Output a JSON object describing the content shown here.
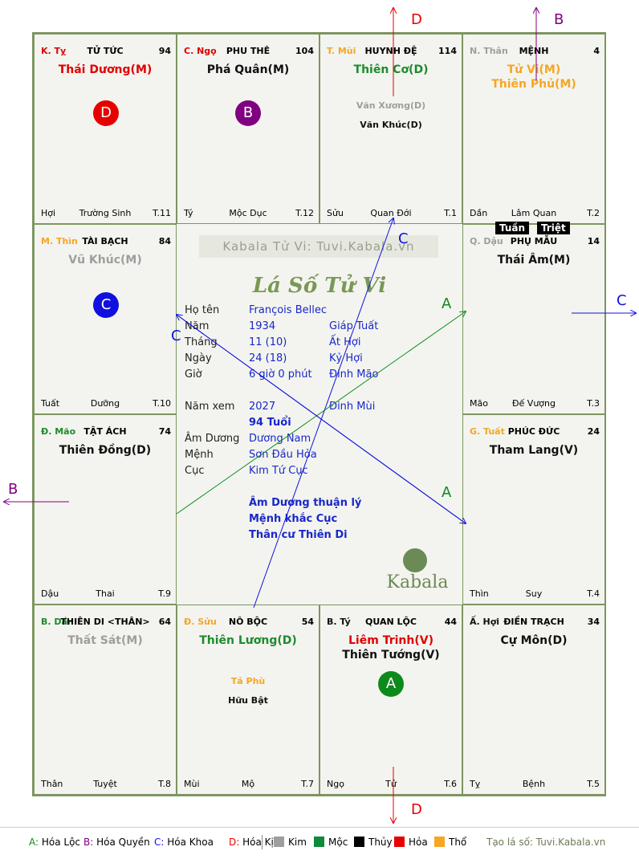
{
  "cells": [
    {
      "id": "ty",
      "can": "K. Tỵ",
      "can_color": "red",
      "palace": "TỬ TỨC",
      "num": "94",
      "main": [
        {
          "t": "Thái Dương(M)",
          "c": "red"
        }
      ],
      "minor": [],
      "left": "Hợi",
      "mid": "Trường Sinh",
      "right": "T.11"
    },
    {
      "id": "ngo",
      "can": "C. Ngọ",
      "can_color": "red",
      "palace": "PHU THÊ",
      "num": "104",
      "main": [
        {
          "t": "Phá Quân(M)",
          "c": "black"
        }
      ],
      "minor": [],
      "left": "Tý",
      "mid": "Mộc Dục",
      "right": "T.12"
    },
    {
      "id": "mui",
      "can": "T. Mùi",
      "can_color": "orange",
      "palace": "HUYNH ĐỆ",
      "num": "114",
      "main": [
        {
          "t": "Thiên Cơ(D)",
          "c": "green"
        }
      ],
      "minor": [
        {
          "t": "Văn Xương(D)",
          "c": "gray"
        },
        {
          "t": "Văn Khúc(D)",
          "c": "black"
        }
      ],
      "left": "Sửu",
      "mid": "Quan Đới",
      "right": "T.1"
    },
    {
      "id": "than",
      "can": "N. Thân",
      "can_color": "gray",
      "palace": "MỆNH",
      "num": "4",
      "main": [
        {
          "t": "Tử Vi(M)",
          "c": "orange"
        },
        {
          "t": "Thiên Phủ(M)",
          "c": "orange"
        }
      ],
      "minor": [],
      "left": "Dần",
      "mid": "Lâm Quan",
      "right": "T.2"
    },
    {
      "id": "thin",
      "can": "M. Thìn",
      "can_color": "orange",
      "palace": "TÀI BẠCH",
      "num": "84",
      "main": [
        {
          "t": "Vũ Khúc(M)",
          "c": "gray"
        }
      ],
      "minor": [],
      "left": "Tuất",
      "mid": "Dưỡng",
      "right": "T.10"
    },
    {
      "id": "dau",
      "can": "Q. Dậu",
      "can_color": "gray",
      "palace": "PHỤ MẪU",
      "num": "14",
      "main": [
        {
          "t": "Thái Âm(M)",
          "c": "black"
        }
      ],
      "minor": [],
      "left": "Mão",
      "mid": "Đế Vượng",
      "right": "T.3"
    },
    {
      "id": "mao",
      "can": "Đ. Mão",
      "can_color": "green",
      "palace": "TẬT ÁCH",
      "num": "74",
      "main": [
        {
          "t": "Thiên Đồng(D)",
          "c": "black"
        }
      ],
      "minor": [],
      "left": "Dậu",
      "mid": "Thai",
      "right": "T.9"
    },
    {
      "id": "tuat",
      "can": "G. Tuất",
      "can_color": "orange",
      "palace": "PHÚC ĐỨC",
      "num": "24",
      "main": [
        {
          "t": "Tham Lang(V)",
          "c": "black"
        }
      ],
      "minor": [],
      "left": "Thìn",
      "mid": "Suy",
      "right": "T.4"
    },
    {
      "id": "dan",
      "can": "B. Dần",
      "can_color": "green",
      "palace": "THIÊN DI <THÂN>",
      "num": "64",
      "main": [
        {
          "t": "Thất Sát(M)",
          "c": "gray"
        }
      ],
      "minor": [],
      "left": "Thân",
      "mid": "Tuyệt",
      "right": "T.8"
    },
    {
      "id": "suu",
      "can": "Đ. Sửu",
      "can_color": "orange",
      "palace": "NÔ BỘC",
      "num": "54",
      "main": [
        {
          "t": "Thiên Lương(D)",
          "c": "green"
        }
      ],
      "minor": [
        {
          "t": "Tả Phù",
          "c": "orange"
        },
        {
          "t": "Hữu Bật",
          "c": "black"
        }
      ],
      "left": "Mùi",
      "mid": "Mộ",
      "right": "T.7"
    },
    {
      "id": "tyw",
      "can": "B. Tý",
      "can_color": "black",
      "palace": "QUAN LỘC",
      "num": "44",
      "main": [
        {
          "t": "Liêm Trinh(V)",
          "c": "red"
        },
        {
          "t": "Thiên Tướng(V)",
          "c": "black"
        }
      ],
      "minor": [],
      "left": "Ngọ",
      "mid": "Tử",
      "right": "T.6"
    },
    {
      "id": "hoi",
      "can": "Ấ. Hợi",
      "can_color": "black",
      "palace": "ĐIỀN TRẠCH",
      "num": "34",
      "main": [
        {
          "t": "Cự Môn(D)",
          "c": "black"
        }
      ],
      "minor": [],
      "left": "Tỵ",
      "mid": "Bệnh",
      "right": "T.5"
    }
  ],
  "badges": [
    {
      "cell": "ty",
      "letter": "D",
      "color": "#e60000"
    },
    {
      "cell": "ngo",
      "letter": "B",
      "color": "#800080"
    },
    {
      "cell": "thin",
      "letter": "C",
      "color": "#1010e0"
    },
    {
      "cell": "tyw",
      "letter": "A",
      "color": "#0e8a1c"
    }
  ],
  "tuan_triet": [
    "Tuần",
    "Triệt"
  ],
  "center": {
    "watermark": "Kabala Tử Vi: Tuvi.Kabala.vn",
    "title": "Lá Số Tử Vi",
    "rows": [
      {
        "label": "Họ tên",
        "v1": "François Bellec",
        "v2": ""
      },
      {
        "label": "Năm",
        "v1": "1934",
        "v2": "Giáp Tuất"
      },
      {
        "label": "Tháng",
        "v1": "11  (10)",
        "v2": "Ất Hợi"
      },
      {
        "label": "Ngày",
        "v1": "24  (18)",
        "v2": "Kỷ Hợi"
      },
      {
        "label": "Giờ",
        "v1": "6 giờ 0 phút",
        "v2": "Đinh Mão"
      }
    ],
    "nam_xem_label": "Năm xem",
    "nam_xem": "2027",
    "nam_xem_can": "Đinh Mùi",
    "tuoi": "94 Tuổi",
    "rows2": [
      {
        "label": "Âm Dương",
        "v1": "Dương Nam"
      },
      {
        "label": "Mệnh",
        "v1": "Sơn Đầu Hỏa"
      },
      {
        "label": "Cục",
        "v1": "Kim Tứ Cục"
      }
    ],
    "notes": [
      "Âm Dương thuận lý",
      "Mệnh khắc Cục",
      "Thân cư Thiên Di"
    ],
    "logo_text": "Kabala"
  },
  "arrow_labels": {
    "D_top": "D",
    "B_top": "B",
    "C_right": "C",
    "B_left": "B",
    "D_bottom": "D",
    "C_line1": "C",
    "C_line2": "C",
    "A_line1": "A",
    "A_line2": "A"
  },
  "legend": {
    "hoa": [
      {
        "k": "A:",
        "v": "Hóa Lộc",
        "color": "#0e8a1c"
      },
      {
        "k": "B:",
        "v": "Hóa Quyền",
        "color": "#800080"
      },
      {
        "k": "C:",
        "v": "Hóa Khoa",
        "color": "#1010e0"
      },
      {
        "k": "D:",
        "v": "Hóa Kị",
        "color": "#e60000"
      }
    ],
    "elements": [
      {
        "name": "Kim",
        "color": "#9e9e9e"
      },
      {
        "name": "Mộc",
        "color": "#0e8a3c"
      },
      {
        "name": "Thủy",
        "color": "#000000"
      },
      {
        "name": "Hỏa",
        "color": "#e60000"
      },
      {
        "name": "Thổ",
        "color": "#f5a623"
      }
    ],
    "site": "Tạo lá số: Tuvi.Kabala.vn"
  }
}
